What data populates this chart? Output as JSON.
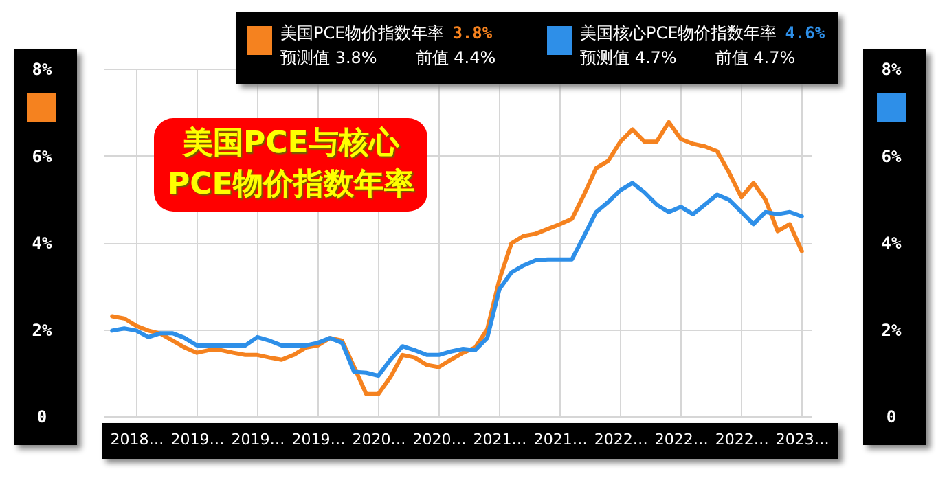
{
  "chart_data": {
    "type": "line",
    "title": "美国PCE与核心\nPCE物价指数年率",
    "categories": [
      null,
      null,
      "2018…",
      null,
      null,
      null,
      null,
      "2019…",
      null,
      null,
      null,
      null,
      "2019…",
      null,
      null,
      null,
      null,
      "2019…",
      null,
      null,
      null,
      null,
      "2020…",
      null,
      null,
      null,
      null,
      "2020…",
      null,
      null,
      null,
      null,
      "2021…",
      null,
      null,
      null,
      null,
      "2021…",
      null,
      null,
      null,
      null,
      "2022…",
      null,
      null,
      null,
      null,
      "2022…",
      null,
      null,
      null,
      null,
      "2022…",
      null,
      null,
      null,
      null,
      "2023…"
    ],
    "series": [
      {
        "name": "美国PCE物价指数年率",
        "color": "#f5821f",
        "values": [
          2.3,
          2.25,
          2.08,
          1.97,
          1.9,
          1.74,
          1.58,
          1.46,
          1.52,
          1.52,
          1.46,
          1.41,
          1.41,
          1.35,
          1.3,
          1.41,
          1.58,
          1.63,
          1.8,
          1.74,
          1.13,
          0.51,
          0.51,
          0.9,
          1.41,
          1.35,
          1.18,
          1.13,
          1.3,
          1.46,
          1.58,
          2.0,
          3.14,
          3.98,
          4.15,
          4.2,
          4.31,
          4.42,
          4.54,
          5.1,
          5.71,
          5.88,
          6.32,
          6.6,
          6.32,
          6.32,
          6.77,
          6.38,
          6.27,
          6.21,
          6.1,
          5.6,
          5.04,
          5.37,
          4.98,
          4.26,
          4.42,
          3.8
        ]
      },
      {
        "name": "美国核心PCE物价指数年率",
        "color": "#2e8fe8",
        "axis": "y2",
        "values": [
          1.97,
          2.02,
          1.97,
          1.82,
          1.91,
          1.91,
          1.8,
          1.63,
          1.63,
          1.63,
          1.63,
          1.63,
          1.82,
          1.74,
          1.63,
          1.63,
          1.63,
          1.69,
          1.8,
          1.69,
          1.02,
          1.0,
          0.93,
          1.3,
          1.61,
          1.52,
          1.41,
          1.41,
          1.49,
          1.55,
          1.52,
          1.8,
          2.92,
          3.31,
          3.47,
          3.59,
          3.61,
          3.61,
          3.61,
          4.15,
          4.7,
          4.93,
          5.2,
          5.37,
          5.15,
          4.87,
          4.7,
          4.82,
          4.65,
          4.87,
          5.1,
          4.98,
          4.7,
          4.42,
          4.7,
          4.65,
          4.7,
          4.6
        ]
      }
    ],
    "ylim": [
      0,
      8
    ],
    "yticks": [
      0,
      {
        "value": 2,
        "label": "2%"
      },
      {
        "value": 4,
        "label": "4%"
      },
      {
        "value": 6,
        "label": "6%"
      },
      {
        "value": 8,
        "label": "8%"
      }
    ],
    "y2lim": [
      0,
      8
    ],
    "y2ticks": [
      0,
      {
        "value": 2,
        "label": "2%"
      },
      {
        "value": 4,
        "label": "4%"
      },
      {
        "value": 6,
        "label": "6%"
      },
      {
        "value": 8,
        "label": "8%"
      }
    ],
    "grid": true,
    "legend": "top",
    "annotations": [
      "3.8%",
      "预测值 3.8%",
      "前值 4.4%",
      "4.6%",
      "预测值 4.7%",
      "前值 4.7%"
    ]
  }
}
